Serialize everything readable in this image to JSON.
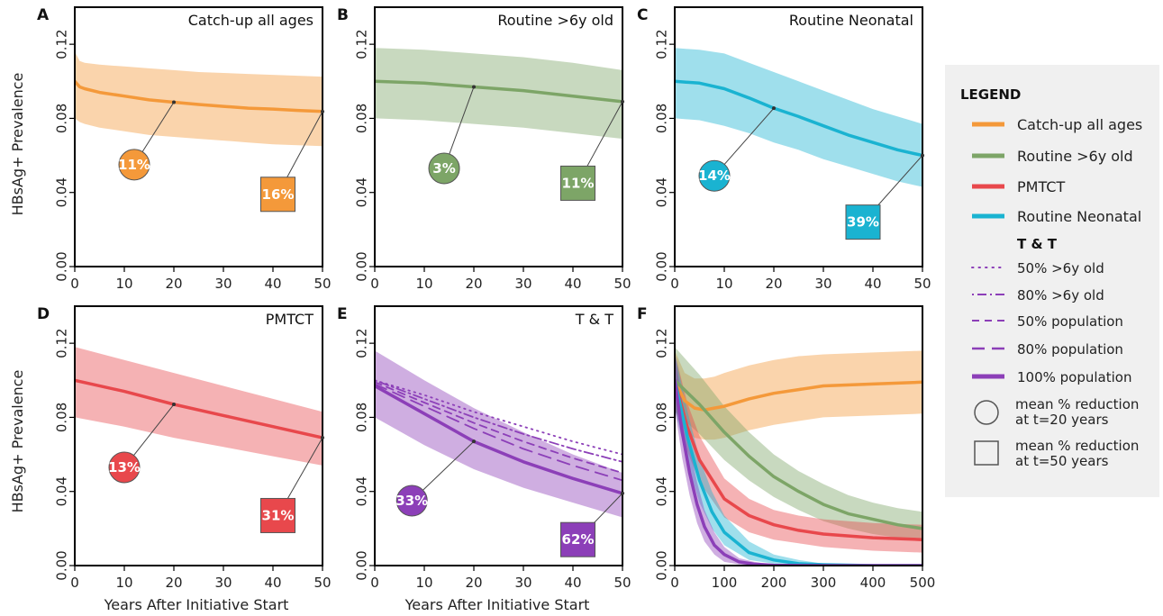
{
  "colors": {
    "catchup": "#f4993a",
    "routine6": "#7da567",
    "pmtct": "#e8484c",
    "neonatal": "#1ab3d1",
    "tt": "#8c3fb8",
    "legend_bg": "#f0f0f0"
  },
  "y_axis_label": "HBsAg+ Prevalence",
  "x_axis_label": "Years After Initiative Start",
  "legend": {
    "heading": "LEGEND",
    "items": [
      {
        "label": "Catch-up all ages",
        "color": "#f4993a",
        "style": "solid"
      },
      {
        "label": "Routine >6y old",
        "color": "#7da567",
        "style": "solid"
      },
      {
        "label": "PMTCT",
        "color": "#e8484c",
        "style": "solid"
      },
      {
        "label": "Routine Neonatal",
        "color": "#1ab3d1",
        "style": "solid"
      }
    ],
    "tt_heading": "T & T",
    "tt_items": [
      {
        "label": "50% >6y old",
        "style": "dotted"
      },
      {
        "label": "80% >6y old",
        "style": "dashdot"
      },
      {
        "label": "50% population",
        "style": "dashed"
      },
      {
        "label": "80% population",
        "style": "longdash"
      },
      {
        "label": "100% population",
        "style": "thick"
      }
    ],
    "circle_label_1": "mean % reduction",
    "circle_label_2": "at t=20 years",
    "square_label_1": "mean % reduction",
    "square_label_2": "at t=50 years"
  },
  "chart_data": [
    {
      "panel": "A",
      "title": "Catch-up all ages",
      "type": "line",
      "xlim": [
        0,
        50
      ],
      "ylim": [
        0,
        0.14
      ],
      "xticks": [
        0,
        10,
        20,
        30,
        40,
        50
      ],
      "yticks": [
        0.0,
        0.04,
        0.08,
        0.12
      ],
      "color": "#f4993a",
      "series": [
        {
          "x": [
            0,
            1,
            2,
            5,
            10,
            15,
            20,
            25,
            30,
            35,
            40,
            45,
            50
          ],
          "y": [
            0.1,
            0.097,
            0.096,
            0.094,
            0.092,
            0.09,
            0.0887,
            0.0875,
            0.0865,
            0.0855,
            0.085,
            0.0843,
            0.0837
          ],
          "upper": [
            0.116,
            0.111,
            0.11,
            0.109,
            0.108,
            0.107,
            0.106,
            0.105,
            0.1045,
            0.104,
            0.1035,
            0.103,
            0.1025
          ],
          "lower": [
            0.08,
            0.078,
            0.077,
            0.075,
            0.073,
            0.071,
            0.07,
            0.069,
            0.068,
            0.067,
            0.066,
            0.0655,
            0.065
          ]
        }
      ],
      "circle": {
        "label": "11%",
        "x": 12,
        "y": 0.055,
        "target_x": 20,
        "target_y": 0.0887
      },
      "square": {
        "label": "16%",
        "x": 41,
        "y": 0.039,
        "target_x": 50,
        "target_y": 0.0837
      }
    },
    {
      "panel": "B",
      "title": "Routine >6y old",
      "type": "line",
      "xlim": [
        0,
        50
      ],
      "ylim": [
        0,
        0.14
      ],
      "xticks": [
        0,
        10,
        20,
        30,
        40,
        50
      ],
      "yticks": [
        0.0,
        0.04,
        0.08,
        0.12
      ],
      "color": "#7da567",
      "series": [
        {
          "x": [
            0,
            10,
            20,
            30,
            40,
            50
          ],
          "y": [
            0.1,
            0.099,
            0.097,
            0.095,
            0.092,
            0.089
          ],
          "upper": [
            0.118,
            0.117,
            0.115,
            0.113,
            0.11,
            0.106
          ],
          "lower": [
            0.08,
            0.079,
            0.077,
            0.075,
            0.072,
            0.069
          ]
        }
      ],
      "circle": {
        "label": "3%",
        "x": 14,
        "y": 0.053,
        "target_x": 20,
        "target_y": 0.097
      },
      "square": {
        "label": "11%",
        "x": 41,
        "y": 0.045,
        "target_x": 50,
        "target_y": 0.089
      }
    },
    {
      "panel": "C",
      "title": "Routine Neonatal",
      "type": "line",
      "xlim": [
        0,
        50
      ],
      "ylim": [
        0,
        0.14
      ],
      "xticks": [
        0,
        10,
        20,
        30,
        40,
        50
      ],
      "yticks": [
        0.0,
        0.04,
        0.08,
        0.12
      ],
      "color": "#1ab3d1",
      "series": [
        {
          "x": [
            0,
            5,
            10,
            15,
            20,
            25,
            30,
            35,
            40,
            45,
            50
          ],
          "y": [
            0.1,
            0.099,
            0.096,
            0.091,
            0.0855,
            0.081,
            0.076,
            0.071,
            0.067,
            0.063,
            0.06
          ],
          "upper": [
            0.118,
            0.117,
            0.115,
            0.11,
            0.105,
            0.1,
            0.095,
            0.09,
            0.085,
            0.081,
            0.077
          ],
          "lower": [
            0.08,
            0.079,
            0.076,
            0.072,
            0.067,
            0.063,
            0.058,
            0.054,
            0.05,
            0.046,
            0.043
          ]
        }
      ],
      "circle": {
        "label": "14%",
        "x": 8,
        "y": 0.049,
        "target_x": 20,
        "target_y": 0.0855
      },
      "square": {
        "label": "39%",
        "x": 38,
        "y": 0.024,
        "target_x": 50,
        "target_y": 0.06
      }
    },
    {
      "panel": "D",
      "title": "PMTCT",
      "type": "line",
      "xlim": [
        0,
        50
      ],
      "ylim": [
        0,
        0.14
      ],
      "xticks": [
        0,
        10,
        20,
        30,
        40,
        50
      ],
      "yticks": [
        0.0,
        0.04,
        0.08,
        0.12
      ],
      "color": "#e8484c",
      "series": [
        {
          "x": [
            0,
            10,
            20,
            30,
            40,
            50
          ],
          "y": [
            0.1,
            0.094,
            0.087,
            0.081,
            0.075,
            0.069
          ],
          "upper": [
            0.118,
            0.111,
            0.104,
            0.097,
            0.09,
            0.083
          ],
          "lower": [
            0.08,
            0.075,
            0.069,
            0.064,
            0.059,
            0.054
          ]
        }
      ],
      "circle": {
        "label": "13%",
        "x": 10,
        "y": 0.053,
        "target_x": 20,
        "target_y": 0.087
      },
      "square": {
        "label": "31%",
        "x": 41,
        "y": 0.027,
        "target_x": 50,
        "target_y": 0.069
      }
    },
    {
      "panel": "E",
      "title": "T & T",
      "type": "line",
      "xlim": [
        0,
        50
      ],
      "ylim": [
        0,
        0.14
      ],
      "xticks": [
        0,
        10,
        20,
        30,
        40,
        50
      ],
      "yticks": [
        0.0,
        0.04,
        0.08,
        0.12
      ],
      "color": "#8c3fb8",
      "series": [
        {
          "name": "50% >6y old",
          "style": "dotted",
          "x": [
            0,
            10,
            20,
            30,
            40,
            50
          ],
          "y": [
            0.1,
            0.092,
            0.083,
            0.075,
            0.067,
            0.06
          ]
        },
        {
          "name": "80% >6y old",
          "style": "dashdot",
          "x": [
            0,
            10,
            20,
            30,
            40,
            50
          ],
          "y": [
            0.1,
            0.09,
            0.08,
            0.071,
            0.063,
            0.056
          ]
        },
        {
          "name": "50% population",
          "style": "dashed",
          "x": [
            0,
            10,
            20,
            30,
            40,
            50
          ],
          "y": [
            0.099,
            0.088,
            0.077,
            0.067,
            0.058,
            0.05
          ]
        },
        {
          "name": "80% population",
          "style": "longdash",
          "x": [
            0,
            10,
            20,
            30,
            40,
            50
          ],
          "y": [
            0.098,
            0.086,
            0.074,
            0.063,
            0.054,
            0.046
          ]
        },
        {
          "name": "100% population",
          "style": "thick",
          "x": [
            0,
            10,
            20,
            30,
            40,
            50
          ],
          "y": [
            0.097,
            0.082,
            0.067,
            0.056,
            0.047,
            0.039
          ],
          "upper": [
            0.116,
            0.1,
            0.085,
            0.072,
            0.06,
            0.05
          ],
          "lower": [
            0.08,
            0.065,
            0.052,
            0.042,
            0.034,
            0.026
          ]
        }
      ],
      "circle": {
        "label": "33%",
        "x": 7.5,
        "y": 0.035,
        "target_x": 20,
        "target_y": 0.067
      },
      "square": {
        "label": "62%",
        "x": 41,
        "y": 0.014,
        "target_x": 50,
        "target_y": 0.039
      }
    },
    {
      "panel": "F",
      "title": "",
      "type": "line",
      "xlim": [
        0,
        500
      ],
      "ylim": [
        0,
        0.14
      ],
      "xticks": [
        0,
        100,
        200,
        300,
        400,
        500
      ],
      "yticks": [
        0.0,
        0.04,
        0.08,
        0.12
      ],
      "series": [
        {
          "name": "Catch-up all ages",
          "color": "#f4993a",
          "x": [
            0,
            20,
            40,
            60,
            80,
            100,
            150,
            200,
            250,
            300,
            400,
            500
          ],
          "y": [
            0.1,
            0.089,
            0.085,
            0.084,
            0.085,
            0.086,
            0.09,
            0.093,
            0.095,
            0.097,
            0.098,
            0.099
          ],
          "upper": [
            0.116,
            0.104,
            0.101,
            0.101,
            0.102,
            0.104,
            0.108,
            0.111,
            0.113,
            0.114,
            0.115,
            0.116
          ],
          "lower": [
            0.085,
            0.073,
            0.069,
            0.068,
            0.068,
            0.069,
            0.073,
            0.076,
            0.078,
            0.08,
            0.081,
            0.082
          ]
        },
        {
          "name": "Routine >6y old",
          "color": "#7da567",
          "x": [
            0,
            50,
            100,
            150,
            200,
            250,
            300,
            350,
            400,
            450,
            500
          ],
          "y": [
            0.1,
            0.087,
            0.072,
            0.059,
            0.048,
            0.04,
            0.033,
            0.028,
            0.025,
            0.022,
            0.02
          ],
          "upper": [
            0.118,
            0.103,
            0.086,
            0.072,
            0.06,
            0.051,
            0.044,
            0.038,
            0.034,
            0.031,
            0.029
          ],
          "lower": [
            0.083,
            0.071,
            0.057,
            0.046,
            0.037,
            0.03,
            0.024,
            0.02,
            0.017,
            0.015,
            0.013
          ]
        },
        {
          "name": "PMTCT",
          "color": "#e8484c",
          "x": [
            0,
            25,
            50,
            100,
            150,
            200,
            250,
            300,
            400,
            500
          ],
          "y": [
            0.1,
            0.075,
            0.057,
            0.036,
            0.027,
            0.022,
            0.019,
            0.017,
            0.015,
            0.014
          ],
          "upper": [
            0.115,
            0.088,
            0.07,
            0.047,
            0.036,
            0.03,
            0.027,
            0.025,
            0.023,
            0.022
          ],
          "lower": [
            0.085,
            0.062,
            0.045,
            0.026,
            0.018,
            0.014,
            0.012,
            0.01,
            0.008,
            0.007
          ]
        },
        {
          "name": "Routine Neonatal",
          "color": "#1ab3d1",
          "x": [
            0,
            25,
            50,
            75,
            100,
            150,
            200,
            250,
            300,
            400,
            500
          ],
          "y": [
            0.1,
            0.07,
            0.046,
            0.029,
            0.018,
            0.007,
            0.003,
            0.001,
            0.0005,
            0.0,
            0.0
          ],
          "upper": [
            0.115,
            0.084,
            0.058,
            0.04,
            0.027,
            0.013,
            0.006,
            0.003,
            0.001,
            0.0,
            0.0
          ],
          "lower": [
            0.085,
            0.056,
            0.034,
            0.02,
            0.011,
            0.003,
            0.001,
            0.0,
            0.0,
            0.0,
            0.0
          ]
        },
        {
          "name": "100% population",
          "color": "#8c3fb8",
          "x": [
            0,
            15,
            30,
            45,
            60,
            80,
            100,
            130,
            160,
            200,
            300,
            500
          ],
          "y": [
            0.1,
            0.072,
            0.05,
            0.033,
            0.021,
            0.011,
            0.006,
            0.002,
            0.0008,
            0.0002,
            0.0,
            0.0
          ],
          "upper": [
            0.115,
            0.088,
            0.064,
            0.045,
            0.03,
            0.018,
            0.01,
            0.004,
            0.002,
            0.0005,
            0.0,
            0.0
          ],
          "lower": [
            0.085,
            0.058,
            0.038,
            0.023,
            0.013,
            0.006,
            0.002,
            0.0006,
            0.0002,
            0.0,
            0.0,
            0.0
          ]
        }
      ]
    }
  ]
}
